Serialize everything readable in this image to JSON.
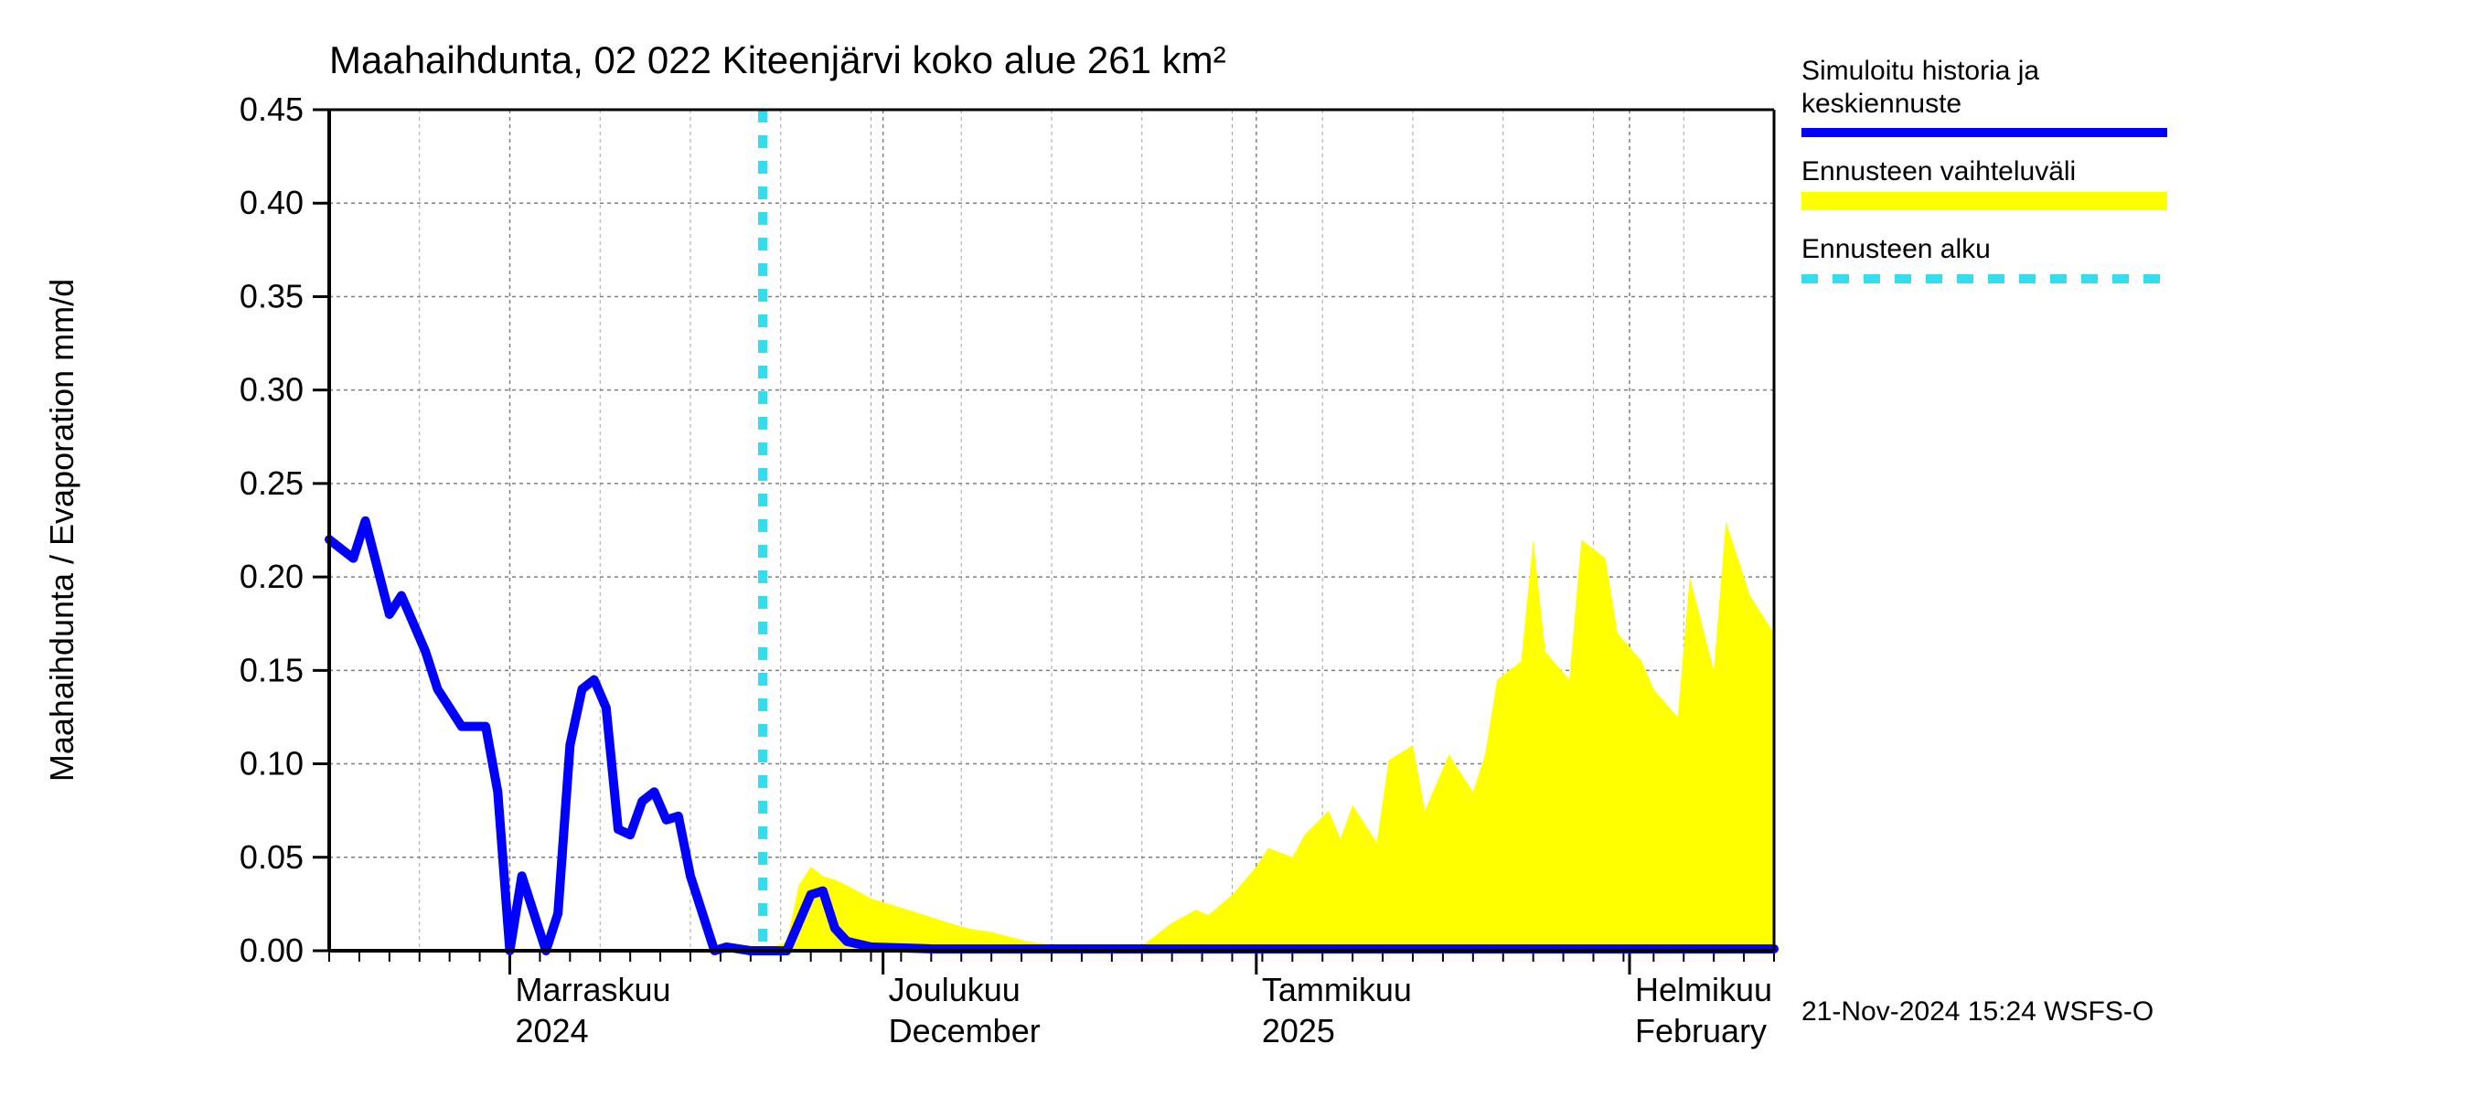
{
  "chart": {
    "type": "line+area",
    "title": "Maahaihdunta, 02 022 Kiteenjärvi koko alue 261 km²",
    "title_fontsize": 42,
    "ylabel": "Maahaihdunta / Evaporation   mm/d",
    "ylabel_fontsize": 36,
    "tick_fontsize": 36,
    "x_sublabel_fontsize": 36,
    "background_color": "#ffffff",
    "plot_bg": "#ffffff",
    "grid_color": "#808080",
    "grid_dash": "4 4",
    "axis_color": "#000000",
    "ylim": [
      0.0,
      0.45
    ],
    "ytick_step": 0.05,
    "ytick_labels": [
      "0.00",
      "0.05",
      "0.10",
      "0.15",
      "0.20",
      "0.25",
      "0.30",
      "0.35",
      "0.40",
      "0.45"
    ],
    "x_days_total": 120,
    "forecast_start_day": 36,
    "history_line": {
      "color": "#0000ff",
      "width": 10,
      "x": [
        0,
        2,
        3,
        5,
        6,
        8,
        9,
        11,
        13,
        14,
        15,
        16,
        18,
        19,
        20,
        21,
        22,
        23,
        24,
        25,
        26,
        27,
        28,
        29,
        30,
        32,
        33,
        35,
        36
      ],
      "y": [
        0.22,
        0.21,
        0.23,
        0.18,
        0.19,
        0.16,
        0.14,
        0.12,
        0.12,
        0.085,
        0.0,
        0.04,
        0.0,
        0.02,
        0.11,
        0.14,
        0.145,
        0.13,
        0.065,
        0.062,
        0.08,
        0.085,
        0.07,
        0.072,
        0.04,
        0.0,
        0.002,
        0.0,
        0.0
      ]
    },
    "forecast_line": {
      "color": "#0000ff",
      "width": 10,
      "x": [
        36,
        38,
        39,
        40,
        41,
        42,
        43,
        45,
        50,
        60,
        70,
        80,
        90,
        100,
        110,
        120
      ],
      "y": [
        0.0,
        0.0,
        0.015,
        0.03,
        0.032,
        0.012,
        0.005,
        0.002,
        0.001,
        0.001,
        0.001,
        0.001,
        0.001,
        0.001,
        0.001,
        0.001
      ]
    },
    "forecast_band": {
      "fill": "#ffff00",
      "x": [
        36,
        38,
        39,
        40,
        41,
        42,
        43,
        45,
        48,
        50,
        53,
        55,
        58,
        60,
        62,
        65,
        67,
        68,
        70,
        72,
        73,
        75,
        77,
        78,
        80,
        81,
        83,
        84,
        85,
        87,
        88,
        90,
        91,
        93,
        95,
        96,
        97,
        99,
        100,
        101,
        103,
        104,
        106,
        107,
        109,
        110,
        112,
        113,
        115,
        116,
        118,
        120
      ],
      "upper": [
        0.0,
        0.005,
        0.035,
        0.045,
        0.04,
        0.038,
        0.035,
        0.028,
        0.022,
        0.018,
        0.012,
        0.01,
        0.005,
        0.003,
        0.002,
        0.001,
        0.001,
        0.005,
        0.015,
        0.022,
        0.019,
        0.03,
        0.045,
        0.055,
        0.05,
        0.062,
        0.075,
        0.06,
        0.078,
        0.058,
        0.102,
        0.11,
        0.075,
        0.105,
        0.085,
        0.105,
        0.145,
        0.155,
        0.22,
        0.16,
        0.145,
        0.22,
        0.21,
        0.17,
        0.155,
        0.14,
        0.125,
        0.2,
        0.15,
        0.23,
        0.19,
        0.17
      ],
      "lower": [
        0.0,
        0.0,
        0.0,
        0.0,
        0.0,
        0.0,
        0.0,
        0.0,
        0.0,
        0.0,
        0.0,
        0.0,
        0.0,
        0.0,
        0.0,
        0.0,
        0.0,
        0.0,
        0.0,
        0.0,
        0.0,
        0.0,
        0.0,
        0.0,
        0.0,
        0.0,
        0.0,
        0.0,
        0.0,
        0.0,
        0.0,
        0.0,
        0.0,
        0.0,
        0.0,
        0.0,
        0.0,
        0.0,
        0.0,
        0.0,
        0.0,
        0.0,
        0.0,
        0.0,
        0.0,
        0.0,
        0.0,
        0.0,
        0.0,
        0.0,
        0.0,
        0.0
      ]
    },
    "forecast_marker": {
      "color": "#33ddee",
      "dash": "14 14",
      "width": 10,
      "x_day": 36
    },
    "month_lines_days": [
      15,
      46,
      77,
      108
    ],
    "minor_ticks_every_days": 2.5,
    "x_month_labels": [
      {
        "day": 15,
        "line1": "Marraskuu",
        "line2": "2024"
      },
      {
        "day": 46,
        "line1": "Joulukuu",
        "line2": "December"
      },
      {
        "day": 77,
        "line1": "Tammikuu",
        "line2": "2025"
      },
      {
        "day": 108,
        "line1": "Helmikuu",
        "line2": "February"
      }
    ]
  },
  "legend": {
    "fontsize": 30,
    "text_color": "#000000",
    "entries": [
      {
        "label_line1": "Simuloitu historia ja",
        "label_line2": "keskiennuste",
        "swatch_type": "solid",
        "color": "#0000ff"
      },
      {
        "label_line1": "Ennusteen vaihteluväli",
        "label_line2": "",
        "swatch_type": "fill",
        "color": "#ffff00"
      },
      {
        "label_line1": "Ennusteen alku",
        "label_line2": "",
        "swatch_type": "dashed",
        "color": "#33ddee"
      }
    ]
  },
  "timestamp": {
    "text": "21-Nov-2024 15:24 WSFS-O",
    "fontsize": 30,
    "color": "#000000"
  }
}
